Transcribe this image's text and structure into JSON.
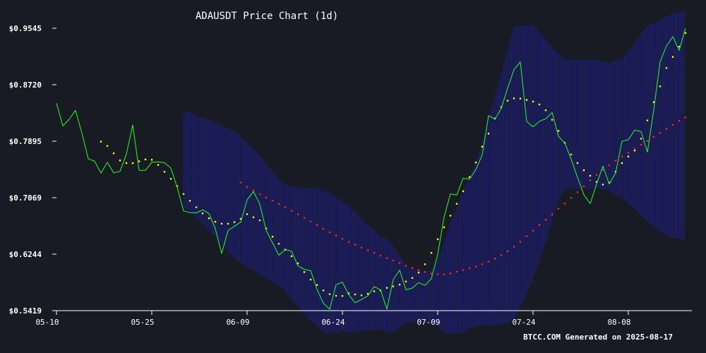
{
  "chart_data": {
    "type": "line",
    "title": "ADAUSDT Price Chart (1d)",
    "footer": "BTCC.COM Generated on 2025-08-17",
    "xlabel": "",
    "ylabel": "",
    "x_start_date": "2025-05-10",
    "x_tick_labels": [
      "05-10",
      "05-25",
      "06-09",
      "06-24",
      "07-09",
      "07-24",
      "08-08"
    ],
    "x_tick_day_index": [
      0,
      15,
      30,
      45,
      60,
      75,
      90
    ],
    "y_tick_labels": [
      "$0.5419",
      "$0.6244",
      "$0.7069",
      "$0.7895",
      "$0.8720",
      "$0.9545"
    ],
    "y_tick_values": [
      0.5419,
      0.6244,
      0.7069,
      0.7895,
      0.872,
      0.9545
    ],
    "ylim": [
      0.5419,
      0.9545
    ],
    "xlim_days": [
      0,
      99
    ],
    "grid": false,
    "colors": {
      "background": "#181b24",
      "price": "#22ff22",
      "ma_short": "#ffff00",
      "ma_long": "#ff2222",
      "bollinger": "#1f1f8a",
      "axis": "#ffffff",
      "text": "#ffffff"
    },
    "series": [
      {
        "name": "Close",
        "style": "line",
        "color": "#22ff22",
        "start_day": 0,
        "values": [
          0.8451,
          0.8117,
          0.8214,
          0.8346,
          0.8012,
          0.7638,
          0.7603,
          0.7429,
          0.7585,
          0.7431,
          0.7454,
          0.7706,
          0.8134,
          0.7469,
          0.747,
          0.7586,
          0.7593,
          0.758,
          0.7503,
          0.7219,
          0.6875,
          0.6851,
          0.6848,
          0.6891,
          0.6838,
          0.6616,
          0.6255,
          0.659,
          0.6651,
          0.6713,
          0.7037,
          0.7158,
          0.6974,
          0.6593,
          0.641,
          0.6229,
          0.6312,
          0.6288,
          0.6072,
          0.6022,
          0.6004,
          0.5729,
          0.5528,
          0.5439,
          0.5798,
          0.5837,
          0.565,
          0.5535,
          0.5582,
          0.5636,
          0.5771,
          0.5722,
          0.544,
          0.5873,
          0.6011,
          0.5723,
          0.5749,
          0.5829,
          0.5788,
          0.5887,
          0.6242,
          0.6786,
          0.7125,
          0.7108,
          0.7354,
          0.7339,
          0.7479,
          0.7694,
          0.8268,
          0.822,
          0.8372,
          0.8669,
          0.8939,
          0.9054,
          0.8183,
          0.8105,
          0.8184,
          0.8223,
          0.8313,
          0.7967,
          0.7868,
          0.7633,
          0.7366,
          0.7112,
          0.6982,
          0.7266,
          0.7531,
          0.7268,
          0.743,
          0.7893,
          0.7916,
          0.8055,
          0.8035,
          0.7735,
          0.8354,
          0.9054,
          0.9287,
          0.9422,
          0.9222,
          0.9545
        ]
      },
      {
        "name": "MA short",
        "style": "dots",
        "color": "#ffff00",
        "start_day": 7,
        "values": [
          0.789,
          0.7826,
          0.7718,
          0.7614,
          0.7575,
          0.7574,
          0.7601,
          0.7628,
          0.7623,
          0.7548,
          0.7448,
          0.7345,
          0.7238,
          0.7123,
          0.7024,
          0.693,
          0.6841,
          0.6768,
          0.6717,
          0.669,
          0.6689,
          0.6712,
          0.676,
          0.6829,
          0.6784,
          0.6739,
          0.6619,
          0.65,
          0.6396,
          0.6311,
          0.6215,
          0.611,
          0.5983,
          0.5873,
          0.5793,
          0.5715,
          0.566,
          0.5637,
          0.5634,
          0.5672,
          0.5656,
          0.5643,
          0.5665,
          0.5702,
          0.5714,
          0.5752,
          0.5773,
          0.58,
          0.5844,
          0.5897,
          0.5975,
          0.6097,
          0.6263,
          0.6463,
          0.6638,
          0.6807,
          0.698,
          0.7164,
          0.7371,
          0.7584,
          0.7815,
          0.8006,
          0.8225,
          0.8395,
          0.8486,
          0.8521,
          0.8517,
          0.8497,
          0.8474,
          0.8432,
          0.8347,
          0.8208,
          0.8045,
          0.7871,
          0.77,
          0.7575,
          0.7471,
          0.739,
          0.73,
          0.7262,
          0.7288,
          0.745,
          0.7575,
          0.7671,
          0.7758,
          0.7932,
          0.8199,
          0.8465,
          0.8696,
          0.8963,
          0.9126,
          0.9276,
          0.9476
        ]
      },
      {
        "name": "MA long",
        "style": "dots",
        "color": "#ff2222",
        "start_day": 29,
        "values": [
          0.729,
          0.7227,
          0.7174,
          0.7122,
          0.7073,
          0.7027,
          0.6979,
          0.6929,
          0.6878,
          0.6826,
          0.6774,
          0.6722,
          0.667,
          0.6616,
          0.6563,
          0.6516,
          0.6468,
          0.6424,
          0.6384,
          0.6341,
          0.6302,
          0.6263,
          0.6223,
          0.6186,
          0.6152,
          0.6113,
          0.6075,
          0.6041,
          0.6012,
          0.5984,
          0.5961,
          0.5951,
          0.5949,
          0.5962,
          0.5989,
          0.6013,
          0.6038,
          0.6063,
          0.6097,
          0.6136,
          0.618,
          0.6228,
          0.6286,
          0.6353,
          0.6425,
          0.6506,
          0.6587,
          0.667,
          0.6748,
          0.6825,
          0.6907,
          0.6982,
          0.7065,
          0.7148,
          0.7236,
          0.7326,
          0.7405,
          0.7476,
          0.7543,
          0.761,
          0.7671,
          0.7723,
          0.7785,
          0.7843,
          0.7899,
          0.7959,
          0.8015,
          0.8076,
          0.8135,
          0.8193,
          0.8243
        ]
      },
      {
        "name": "Bollinger band",
        "style": "band",
        "color": "#1f1f8a",
        "start_day": 20,
        "upper": [
          0.8329,
          0.831,
          0.8263,
          0.8233,
          0.821,
          0.8168,
          0.8116,
          0.8088,
          0.8038,
          0.7956,
          0.7877,
          0.7779,
          0.7677,
          0.7563,
          0.7449,
          0.7334,
          0.7273,
          0.723,
          0.7215,
          0.721,
          0.7201,
          0.7201,
          0.7175,
          0.7139,
          0.7076,
          0.7002,
          0.6946,
          0.6859,
          0.6757,
          0.6667,
          0.6588,
          0.6502,
          0.6466,
          0.6364,
          0.6218,
          0.608,
          0.6023,
          0.6015,
          0.5998,
          0.6006,
          0.6165,
          0.6425,
          0.6702,
          0.6922,
          0.7157,
          0.7367,
          0.7599,
          0.787,
          0.8231,
          0.8549,
          0.8875,
          0.9227,
          0.9563,
          0.9576,
          0.9586,
          0.9595,
          0.9484,
          0.9384,
          0.9261,
          0.9179,
          0.9084,
          0.9083,
          0.9083,
          0.9081,
          0.908,
          0.9079,
          0.9052,
          0.9031,
          0.9075,
          0.9095,
          0.9227,
          0.9323,
          0.9465,
          0.9582,
          0.9618,
          0.968,
          0.9716,
          0.9767,
          0.9767,
          0.9822
        ],
        "lower": [
          0.691,
          0.6872,
          0.6785,
          0.6689,
          0.6583,
          0.6502,
          0.6396,
          0.6285,
          0.6183,
          0.612,
          0.6056,
          0.6008,
          0.5953,
          0.5896,
          0.5834,
          0.5786,
          0.5698,
          0.5598,
          0.548,
          0.5373,
          0.527,
          0.5183,
          0.5114,
          0.5099,
          0.5098,
          0.5132,
          0.5098,
          0.5106,
          0.5131,
          0.5131,
          0.5143,
          0.5146,
          0.5099,
          0.51,
          0.5169,
          0.5245,
          0.5261,
          0.5262,
          0.5244,
          0.5245,
          0.5186,
          0.5102,
          0.5083,
          0.5088,
          0.5106,
          0.5157,
          0.5185,
          0.5218,
          0.52,
          0.5211,
          0.5239,
          0.5236,
          0.5285,
          0.547,
          0.5671,
          0.5882,
          0.6143,
          0.6425,
          0.6722,
          0.6996,
          0.7199,
          0.72,
          0.7195,
          0.7195,
          0.7197,
          0.7203,
          0.7185,
          0.7169,
          0.7109,
          0.7069,
          0.6988,
          0.6905,
          0.6812,
          0.6719,
          0.6649,
          0.6569,
          0.6521,
          0.6486,
          0.6468,
          0.6448
        ]
      }
    ]
  }
}
